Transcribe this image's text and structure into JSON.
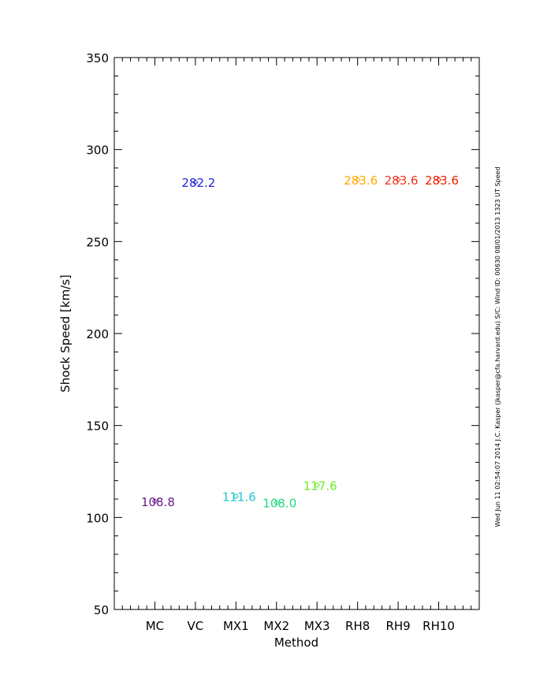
{
  "chart_data": {
    "type": "scatter",
    "x_label": "Method",
    "y_label": "Shock Speed [km/s]",
    "footnote": "Wed Jun 11 02:54:07 2014   J.C. Kasper (jkasper@cfa.harvard.edu)   S/C: Wind ID: 00630 08/01/2013  1323 UT Speed",
    "categories": [
      "MC",
      "VC",
      "MX1",
      "MX2",
      "MX3",
      "RH8",
      "RH9",
      "RH10"
    ],
    "values": [
      108.8,
      282.2,
      111.6,
      108.0,
      117.6,
      283.6,
      283.6,
      283.6
    ],
    "value_labels": [
      "108.8",
      "282.2",
      "111.6",
      "108.0",
      "117.6",
      "283.6",
      "283.6",
      "283.6"
    ],
    "colors": [
      "#6a1b8a",
      "#2424d8",
      "#22c8d0",
      "#20dc80",
      "#6aee20",
      "#ffaa00",
      "#ee3322",
      "#ee2000"
    ],
    "ylim": [
      50,
      350
    ],
    "yticks": [
      50,
      100,
      150,
      200,
      250,
      300,
      350
    ]
  }
}
